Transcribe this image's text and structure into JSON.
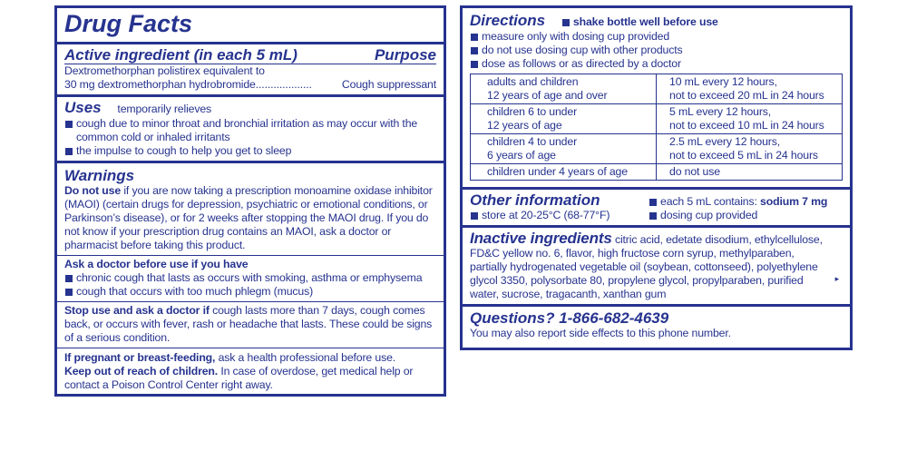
{
  "left": {
    "title": "Drug Facts",
    "active": {
      "heading": "Active ingredient (in each 5 mL)",
      "purpose_heading": "Purpose",
      "line1": "Dextromethorphan polistirex equivalent to",
      "line2": "30 mg dextromethorphan hydrobromide",
      "dots": "...................",
      "purpose": "Cough suppressant"
    },
    "uses": {
      "heading": "Uses",
      "intro": "temporarily relieves",
      "items": [
        "cough due to minor throat and bronchial irritation as may occur with the common cold or inhaled irritants",
        "the impulse to cough to help you get to sleep"
      ]
    },
    "warnings": {
      "heading": "Warnings",
      "do_not_use": {
        "lead": "Do not use",
        "text": "if you are now taking a prescription monoamine oxidase inhibitor (MAOI) (certain drugs for depression, psychiatric or emotional conditions, or Parkinson’s disease), or for 2 weeks after stopping the MAOI drug. If you do not know if your prescription drug contains an MAOI, ask a doctor or pharmacist before taking this product."
      },
      "ask_doctor": {
        "heading": "Ask a doctor before use if you have",
        "items": [
          "chronic cough that lasts as occurs with smoking, asthma or emphysema",
          "cough that occurs with too much phlegm (mucus)"
        ]
      },
      "stop_use": {
        "lead": "Stop use and ask a doctor if",
        "text": "cough lasts more than 7 days, cough comes back, or occurs with fever, rash or headache that lasts. These could be signs of a serious condition."
      },
      "pregnant": {
        "lead": "If pregnant or breast-feeding,",
        "text": "ask a health professional before use."
      },
      "keep_out": {
        "lead": "Keep out of reach of children.",
        "text": "In case of overdose, get medical help or contact a Poison Control Center right away."
      }
    }
  },
  "right": {
    "directions": {
      "heading": "Directions",
      "note": "shake bottle well before use",
      "items": [
        "measure only with dosing cup provided",
        "do not use dosing cup with other products",
        "dose as follows or as directed by a doctor"
      ],
      "table": [
        [
          [
            "adults and children",
            "12 years of age and over"
          ],
          [
            "10 mL every 12 hours,",
            "not to exceed 20 mL in 24 hours"
          ]
        ],
        [
          [
            "children 6 to under",
            "12 years of age"
          ],
          [
            "5 mL every 12 hours,",
            "not to exceed 10 mL in 24 hours"
          ]
        ],
        [
          [
            "children 4 to under",
            "6 years of age"
          ],
          [
            "2.5 mL every 12 hours,",
            "not to exceed 5 mL in 24 hours"
          ]
        ],
        [
          [
            "children under 4 years of age"
          ],
          [
            "do not use"
          ]
        ]
      ]
    },
    "other": {
      "heading": "Other information",
      "store": "store at 20-25°C (68-77°F)",
      "contains_lead": "each 5 mL contains:",
      "contains_value": "sodium 7 mg",
      "cup": "dosing cup provided"
    },
    "inactive": {
      "heading": "Inactive ingredients",
      "text": "citric acid, edetate disodium, ethylcellulose, FD&C yellow no. 6, flavor, high fructose corn syrup, methylparaben, partially hydrogenated vegetable oil (soybean, cottonseed), polyethylene glycol 3350, polysorbate 80, propylene glycol, propylparaben, purified water, sucrose, tragacanth, xanthan gum",
      "arrow": "▸"
    },
    "questions": {
      "heading": "Questions? 1-866-682-4639",
      "text": "You may also report side effects to this phone number."
    }
  }
}
